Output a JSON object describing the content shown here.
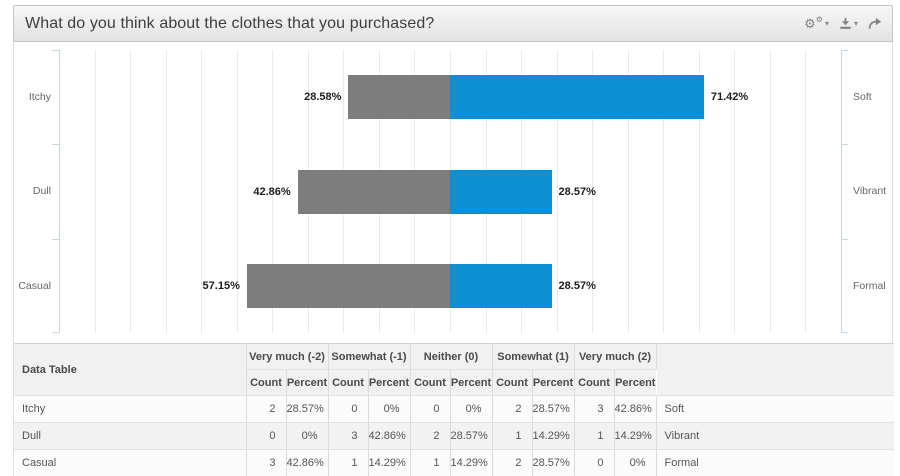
{
  "header": {
    "title": "What do you think about the clothes that you purchased?",
    "toolbar": {
      "gear_glyph": "⚙",
      "caret_glyph": "▾",
      "buttons": [
        {
          "name": "settings",
          "icon": "gears-icon"
        },
        {
          "name": "download",
          "icon": "download-icon"
        },
        {
          "name": "share",
          "icon": "share-arrow-icon"
        }
      ]
    }
  },
  "colors": {
    "negative_bar": "#7d7d7d",
    "positive_bar": "#0b90d5",
    "grid_line": "#eaeaea",
    "axis_line": "#c9d4e4"
  },
  "chart_data": {
    "type": "bar",
    "orientation": "horizontal-diverging",
    "title": "What do you think about the clothes that you purchased?",
    "categories_left": [
      "Itchy",
      "Dull",
      "Casual"
    ],
    "categories_right": [
      "Soft",
      "Vibrant",
      "Formal"
    ],
    "series": [
      {
        "side": "left",
        "color": "#7d7d7d",
        "values": [
          28.58,
          42.86,
          57.15
        ],
        "labels": [
          "28.58%",
          "42.86%",
          "57.15%"
        ]
      },
      {
        "side": "right",
        "color": "#0b90d5",
        "values": [
          71.42,
          28.57,
          28.57
        ],
        "labels": [
          "71.42%",
          "28.57%",
          "28.57%"
        ]
      }
    ],
    "xlim": [
      -110,
      110
    ],
    "grid_step": 10,
    "grid": true,
    "legend": "none"
  },
  "table": {
    "corner_label": "Data Table",
    "groups": [
      {
        "label": "Very much (-2)"
      },
      {
        "label": "Somewhat (-1)"
      },
      {
        "label": "Neither (0)"
      },
      {
        "label": "Somewhat (1)"
      },
      {
        "label": "Very much (2)"
      }
    ],
    "sub_headers": [
      "Count",
      "Percent"
    ],
    "rows": [
      {
        "label": "Itchy",
        "cells": [
          "2",
          "28.57%",
          "0",
          "0%",
          "0",
          "0%",
          "2",
          "28.57%",
          "3",
          "42.86%"
        ],
        "right_label": "Soft"
      },
      {
        "label": "Dull",
        "cells": [
          "0",
          "0%",
          "3",
          "42.86%",
          "2",
          "28.57%",
          "1",
          "14.29%",
          "1",
          "14.29%"
        ],
        "right_label": "Vibrant"
      },
      {
        "label": "Casual",
        "cells": [
          "3",
          "42.86%",
          "1",
          "14.29%",
          "1",
          "14.29%",
          "2",
          "28.57%",
          "0",
          "0%"
        ],
        "right_label": "Formal"
      }
    ]
  }
}
